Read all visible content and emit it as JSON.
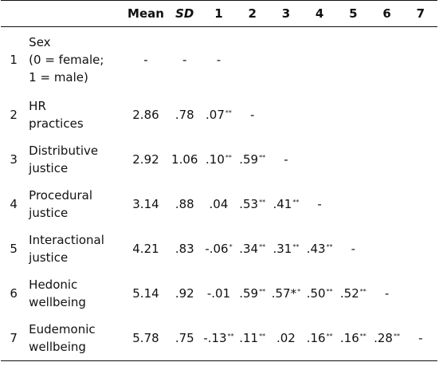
{
  "header": {
    "mean": "Mean",
    "sd": "SD",
    "cols": [
      "1",
      "2",
      "3",
      "4",
      "5",
      "6",
      "7"
    ]
  },
  "rows": [
    {
      "index": "1",
      "variable_lines": [
        "Sex",
        "(0 = female;",
        "1 = male)"
      ],
      "mean": "-",
      "sd": "-",
      "cells": [
        {
          "v": "-",
          "sup": ""
        },
        {
          "v": "",
          "sup": ""
        },
        {
          "v": "",
          "sup": ""
        },
        {
          "v": "",
          "sup": ""
        },
        {
          "v": "",
          "sup": ""
        },
        {
          "v": "",
          "sup": ""
        },
        {
          "v": "",
          "sup": ""
        }
      ]
    },
    {
      "index": "2",
      "variable_lines": [
        "HR",
        "practices"
      ],
      "mean": "2.86",
      "sd": ".78",
      "cells": [
        {
          "v": ".07",
          "sup": "**"
        },
        {
          "v": "-",
          "sup": ""
        },
        {
          "v": "",
          "sup": ""
        },
        {
          "v": "",
          "sup": ""
        },
        {
          "v": "",
          "sup": ""
        },
        {
          "v": "",
          "sup": ""
        },
        {
          "v": "",
          "sup": ""
        }
      ]
    },
    {
      "index": "3",
      "variable_lines": [
        "Distributive",
        "justice"
      ],
      "mean": "2.92",
      "sd": "1.06",
      "cells": [
        {
          "v": ".10",
          "sup": "**"
        },
        {
          "v": ".59",
          "sup": "**"
        },
        {
          "v": "-",
          "sup": ""
        },
        {
          "v": "",
          "sup": ""
        },
        {
          "v": "",
          "sup": ""
        },
        {
          "v": "",
          "sup": ""
        },
        {
          "v": "",
          "sup": ""
        }
      ]
    },
    {
      "index": "4",
      "variable_lines": [
        "Procedural",
        "justice"
      ],
      "mean": "3.14",
      "sd": ".88",
      "cells": [
        {
          "v": ".04",
          "sup": ""
        },
        {
          "v": ".53",
          "sup": "**"
        },
        {
          "v": ".41",
          "sup": "**"
        },
        {
          "v": "-",
          "sup": ""
        },
        {
          "v": "",
          "sup": ""
        },
        {
          "v": "",
          "sup": ""
        },
        {
          "v": "",
          "sup": ""
        }
      ]
    },
    {
      "index": "5",
      "variable_lines": [
        "Interactional",
        "justice"
      ],
      "mean": "4.21",
      "sd": ".83",
      "cells": [
        {
          "v": "-.06",
          "sup": "*"
        },
        {
          "v": ".34",
          "sup": "**"
        },
        {
          "v": ".31",
          "sup": "**"
        },
        {
          "v": ".43",
          "sup": "**"
        },
        {
          "v": "-",
          "sup": ""
        },
        {
          "v": "",
          "sup": ""
        },
        {
          "v": "",
          "sup": ""
        }
      ]
    },
    {
      "index": "6",
      "variable_lines": [
        "Hedonic",
        "wellbeing"
      ],
      "mean": "5.14",
      "sd": ".92",
      "cells": [
        {
          "v": "-.01",
          "sup": ""
        },
        {
          "v": ".59",
          "sup": "**"
        },
        {
          "v": ".57*",
          "sup": "*"
        },
        {
          "v": ".50",
          "sup": "**"
        },
        {
          "v": ".52",
          "sup": "**"
        },
        {
          "v": "-",
          "sup": ""
        },
        {
          "v": "",
          "sup": ""
        }
      ]
    },
    {
      "index": "7",
      "variable_lines": [
        "Eudemonic",
        "wellbeing"
      ],
      "mean": "5.78",
      "sd": ".75",
      "cells": [
        {
          "v": "-.13",
          "sup": "**"
        },
        {
          "v": ".11",
          "sup": "**"
        },
        {
          "v": ".02",
          "sup": ""
        },
        {
          "v": ".16",
          "sup": "**"
        },
        {
          "v": ".16",
          "sup": "**"
        },
        {
          "v": ".28",
          "sup": "**"
        },
        {
          "v": "-",
          "sup": ""
        }
      ]
    }
  ]
}
